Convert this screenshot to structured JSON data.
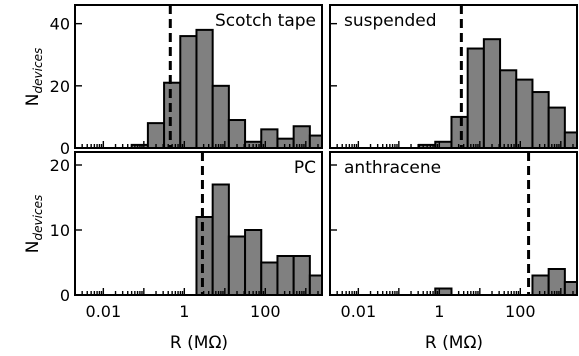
{
  "figure": {
    "ylabel_main": "N",
    "ylabel_sub": "devices",
    "xlabel": "R (MΩ)"
  },
  "chart_data": [
    {
      "type": "bar",
      "label": "Scotch tape",
      "label_position": "top-right",
      "x_scale": "log",
      "x_ticks": [
        0.01,
        1,
        100
      ],
      "x_tick_labels": [
        "0.01",
        "1",
        "100"
      ],
      "y_ticks": [
        0,
        20,
        40
      ],
      "ylim": [
        0,
        46
      ],
      "bins_log10_start": -2.5,
      "bins_log10_width": 0.4,
      "values": [
        0,
        0,
        0,
        1,
        8,
        21,
        36,
        38,
        20,
        9,
        2,
        6,
        3,
        7,
        4
      ],
      "median_line_x": 0.45
    },
    {
      "type": "bar",
      "label": "suspended",
      "label_position": "top-left",
      "x_scale": "log",
      "x_ticks": [
        0.01,
        1,
        100
      ],
      "x_tick_labels": [
        "0.01",
        "1",
        "100"
      ],
      "y_ticks": [
        0,
        20,
        40
      ],
      "ylim": [
        0,
        46
      ],
      "bins_log10_start": -2.5,
      "bins_log10_width": 0.4,
      "values": [
        0,
        0,
        0,
        0,
        0,
        1,
        2,
        10,
        32,
        35,
        25,
        22,
        18,
        13,
        5
      ],
      "median_line_x": 3.5
    },
    {
      "type": "bar",
      "label": "PC",
      "label_position": "top-right",
      "x_scale": "log",
      "x_ticks": [
        0.01,
        1,
        100
      ],
      "x_tick_labels": [
        "0.01",
        "1",
        "100"
      ],
      "y_ticks": [
        0,
        10,
        20
      ],
      "ylim": [
        0,
        22
      ],
      "bins_log10_start": -2.5,
      "bins_log10_width": 0.4,
      "values": [
        0,
        0,
        0,
        0,
        0,
        0,
        0,
        12,
        17,
        9,
        10,
        5,
        6,
        6,
        3
      ],
      "median_line_x": 2.8
    },
    {
      "type": "bar",
      "label": "anthracene",
      "label_position": "top-left",
      "x_scale": "log",
      "x_ticks": [
        0.01,
        1,
        100
      ],
      "x_tick_labels": [
        "0.01",
        "1",
        "100"
      ],
      "y_ticks": [
        0,
        10,
        20
      ],
      "ylim": [
        0,
        22
      ],
      "bins_log10_start": -2.5,
      "bins_log10_width": 0.4,
      "values": [
        0,
        0,
        0,
        0,
        0,
        0,
        1,
        0,
        0,
        0,
        0,
        0,
        3,
        4,
        2
      ],
      "median_line_x": 160
    }
  ]
}
